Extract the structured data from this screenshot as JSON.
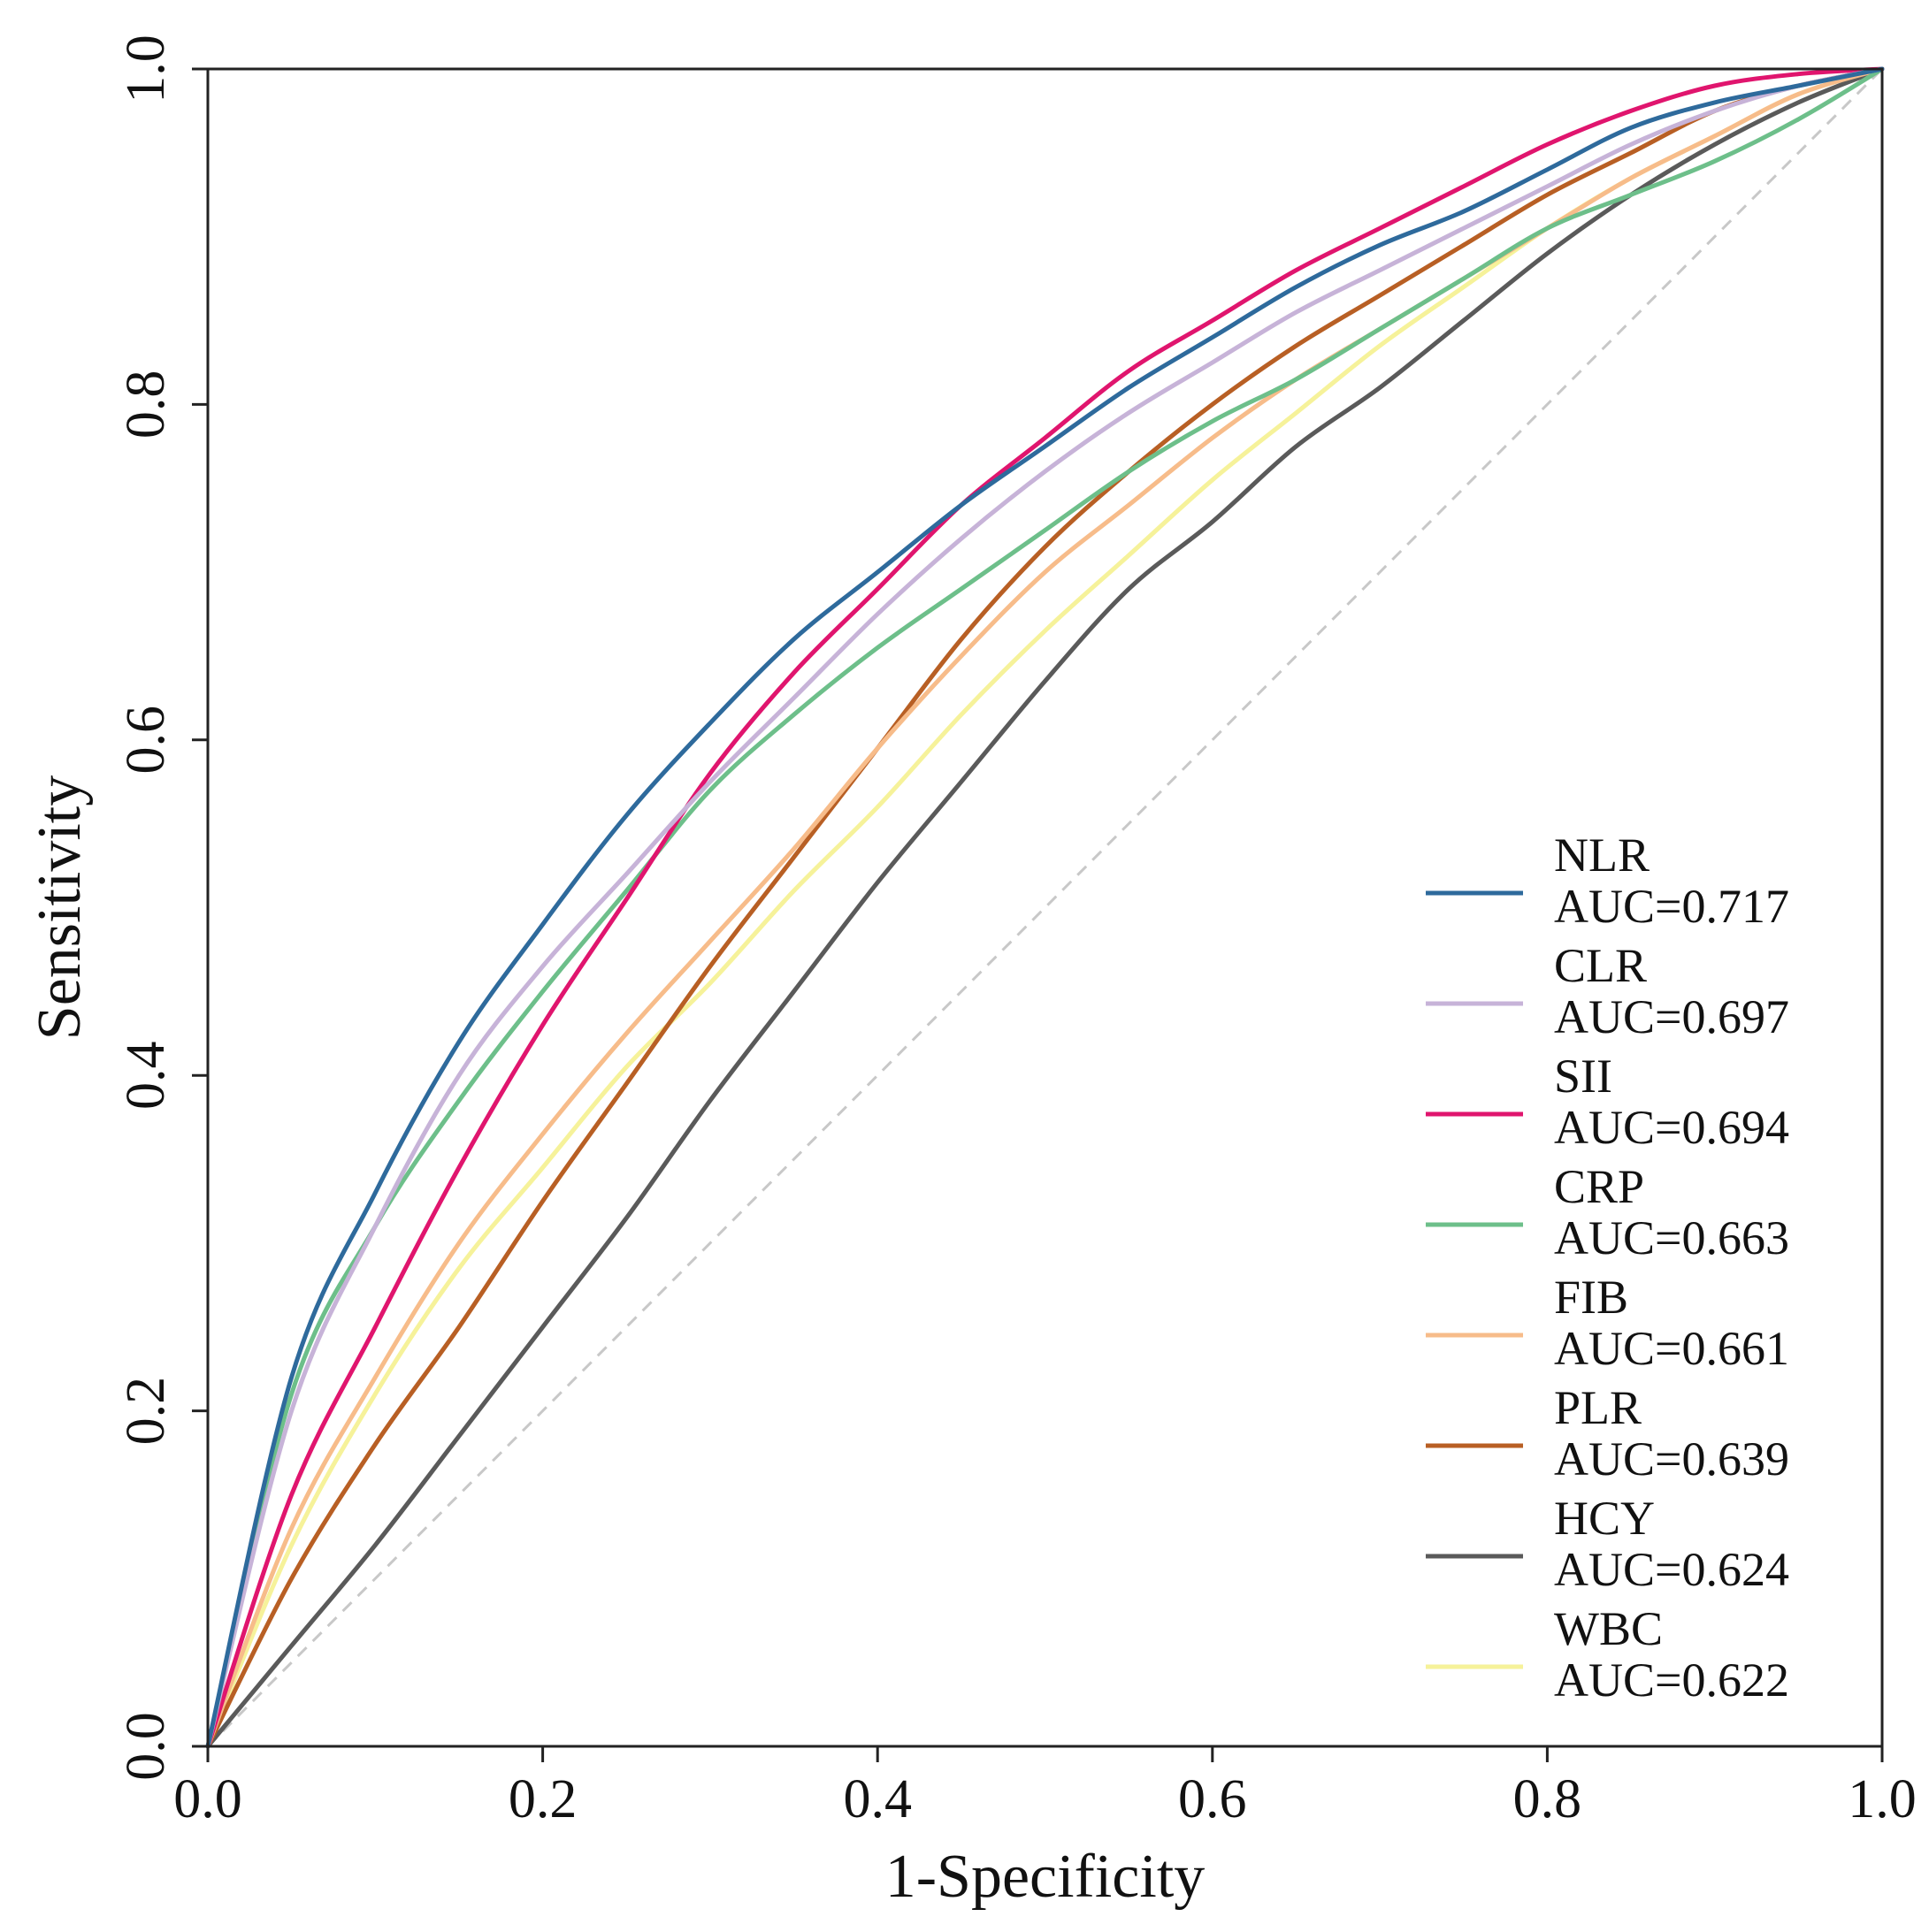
{
  "chart_data": {
    "type": "line",
    "title": "",
    "xlabel": "1-Specificity",
    "ylabel": "Sensitivity",
    "xlim": [
      0.0,
      1.0
    ],
    "ylim": [
      0.0,
      1.0
    ],
    "x_ticks": [
      "0.0",
      "0.2",
      "0.4",
      "0.6",
      "0.8",
      "1.0"
    ],
    "y_ticks": [
      "0.0",
      "0.2",
      "0.4",
      "0.6",
      "0.8",
      "1.0"
    ],
    "grid": false,
    "legend_position": "bottom-right",
    "reference_line": {
      "from": [
        0,
        0
      ],
      "to": [
        1,
        1
      ],
      "style": "dashed",
      "color": "#c8c8c8"
    },
    "x": [
      0.0,
      0.05,
      0.1,
      0.15,
      0.2,
      0.25,
      0.3,
      0.35,
      0.4,
      0.45,
      0.5,
      0.55,
      0.6,
      0.65,
      0.7,
      0.75,
      0.8,
      0.85,
      0.9,
      0.95,
      1.0
    ],
    "series": [
      {
        "name": "NLR",
        "auc_label": "AUC=0.717",
        "color": "#2e6a9c",
        "values": [
          0.0,
          0.22,
          0.33,
          0.42,
          0.49,
          0.555,
          0.61,
          0.66,
          0.7,
          0.74,
          0.775,
          0.81,
          0.84,
          0.87,
          0.895,
          0.915,
          0.94,
          0.965,
          0.98,
          0.99,
          1.0
        ]
      },
      {
        "name": "CLR",
        "auc_label": "AUC=0.697",
        "color": "#c7b3d8",
        "values": [
          0.0,
          0.2,
          0.31,
          0.4,
          0.465,
          0.52,
          0.575,
          0.625,
          0.675,
          0.72,
          0.76,
          0.795,
          0.825,
          0.855,
          0.88,
          0.905,
          0.93,
          0.955,
          0.975,
          0.99,
          1.0
        ]
      },
      {
        "name": "SII",
        "auc_label": "AUC=0.694",
        "color": "#e0156e",
        "values": [
          0.0,
          0.15,
          0.25,
          0.345,
          0.43,
          0.505,
          0.58,
          0.64,
          0.69,
          0.74,
          0.78,
          0.82,
          0.85,
          0.88,
          0.905,
          0.93,
          0.955,
          0.975,
          0.99,
          0.997,
          1.0
        ]
      },
      {
        "name": "CRP",
        "auc_label": "AUC=0.663",
        "color": "#6dbf8a",
        "values": [
          0.0,
          0.21,
          0.31,
          0.385,
          0.45,
          0.51,
          0.57,
          0.615,
          0.655,
          0.69,
          0.725,
          0.76,
          0.79,
          0.815,
          0.845,
          0.875,
          0.905,
          0.925,
          0.945,
          0.97,
          1.0
        ]
      },
      {
        "name": "FIB",
        "auc_label": "AUC=0.661",
        "color": "#f7bc8a",
        "values": [
          0.0,
          0.13,
          0.22,
          0.3,
          0.365,
          0.425,
          0.48,
          0.535,
          0.595,
          0.65,
          0.7,
          0.74,
          0.78,
          0.815,
          0.845,
          0.875,
          0.905,
          0.935,
          0.96,
          0.985,
          1.0
        ]
      },
      {
        "name": "PLR",
        "auc_label": "AUC=0.639",
        "color": "#b85f24",
        "values": [
          0.0,
          0.1,
          0.18,
          0.25,
          0.325,
          0.395,
          0.465,
          0.53,
          0.595,
          0.66,
          0.715,
          0.76,
          0.8,
          0.835,
          0.865,
          0.895,
          0.925,
          0.95,
          0.975,
          0.99,
          1.0
        ]
      },
      {
        "name": "HCY",
        "auc_label": "AUC=0.624",
        "color": "#5a5a5a",
        "values": [
          0.0,
          0.06,
          0.12,
          0.185,
          0.25,
          0.315,
          0.385,
          0.45,
          0.515,
          0.575,
          0.635,
          0.69,
          0.73,
          0.775,
          0.81,
          0.85,
          0.89,
          0.925,
          0.955,
          0.98,
          1.0
        ]
      },
      {
        "name": "WBC",
        "auc_label": "AUC=0.622",
        "color": "#f6f29a",
        "values": [
          0.0,
          0.12,
          0.21,
          0.285,
          0.345,
          0.405,
          0.455,
          0.51,
          0.56,
          0.615,
          0.665,
          0.71,
          0.755,
          0.795,
          0.835,
          0.87,
          0.905,
          0.935,
          0.96,
          0.985,
          1.0
        ]
      }
    ]
  }
}
